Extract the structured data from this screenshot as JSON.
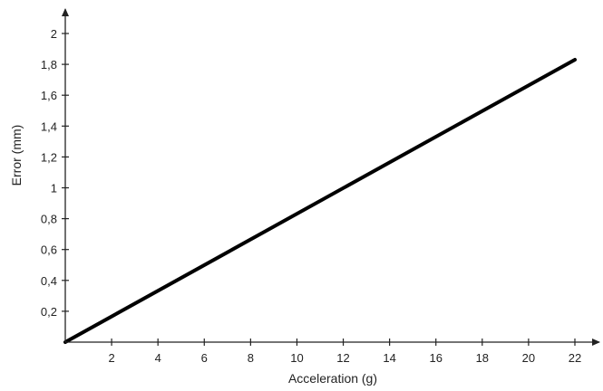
{
  "chart_data": {
    "type": "line",
    "title": "",
    "xlabel": "Acceleration (g)",
    "ylabel": "Error (mm)",
    "xlim": [
      0,
      22
    ],
    "ylim": [
      0,
      2
    ],
    "xticks": [
      2,
      4,
      6,
      8,
      10,
      12,
      14,
      16,
      18,
      20,
      22
    ],
    "yticks": [
      0.2,
      0.4,
      0.6,
      0.8,
      1.0,
      1.2,
      1.4,
      1.6,
      1.8,
      2.0
    ],
    "xtick_labels": [
      "2",
      "4",
      "6",
      "8",
      "10",
      "12",
      "14",
      "16",
      "18",
      "20",
      "22"
    ],
    "ytick_labels": [
      "0,2",
      "0,4",
      "0,6",
      "0,8",
      "1",
      "1,2",
      "1,4",
      "1,6",
      "1,8",
      "2"
    ],
    "grid": false,
    "legend": "none",
    "line_color": "#000000",
    "series": [
      {
        "x": [
          0,
          22
        ],
        "y": [
          0,
          1.83
        ]
      }
    ]
  }
}
